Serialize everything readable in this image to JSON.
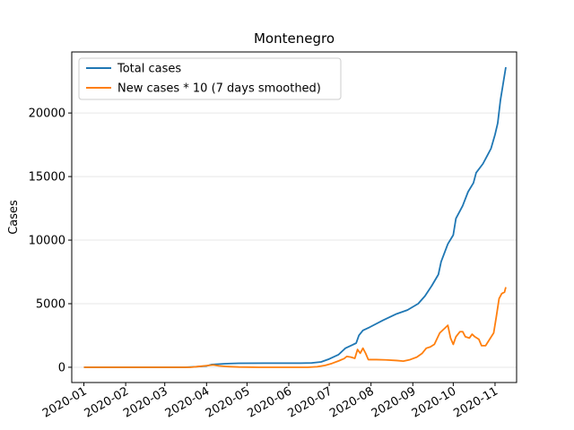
{
  "chart_data": {
    "type": "line",
    "title": "Montenegro",
    "xlabel": "",
    "ylabel": "Cases",
    "x_type": "date",
    "xlim": [
      "2019-12-23",
      "2020-11-17"
    ],
    "ylim": [
      -1200,
      24800
    ],
    "x_ticks": [
      "2020-01",
      "2020-02",
      "2020-03",
      "2020-04",
      "2020-05",
      "2020-06",
      "2020-07",
      "2020-08",
      "2020-09",
      "2020-10",
      "2020-11"
    ],
    "y_ticks": [
      0,
      5000,
      10000,
      15000,
      20000
    ],
    "grid": "y",
    "legend_position": "top-left",
    "series": [
      {
        "name": "Total cases",
        "color": "#1f77b4",
        "points": [
          [
            "2020-01-01",
            0
          ],
          [
            "2020-03-16",
            0
          ],
          [
            "2020-03-24",
            40
          ],
          [
            "2020-04-01",
            100
          ],
          [
            "2020-04-05",
            220
          ],
          [
            "2020-04-15",
            280
          ],
          [
            "2020-04-25",
            315
          ],
          [
            "2020-05-15",
            324
          ],
          [
            "2020-06-10",
            324
          ],
          [
            "2020-06-18",
            340
          ],
          [
            "2020-06-25",
            420
          ],
          [
            "2020-07-01",
            650
          ],
          [
            "2020-07-08",
            1000
          ],
          [
            "2020-07-13",
            1500
          ],
          [
            "2020-07-18",
            1750
          ],
          [
            "2020-07-21",
            1900
          ],
          [
            "2020-07-23",
            2500
          ],
          [
            "2020-07-26",
            2900
          ],
          [
            "2020-07-31",
            3150
          ],
          [
            "2020-08-10",
            3700
          ],
          [
            "2020-08-20",
            4200
          ],
          [
            "2020-08-28",
            4500
          ],
          [
            "2020-09-05",
            5000
          ],
          [
            "2020-09-10",
            5600
          ],
          [
            "2020-09-15",
            6400
          ],
          [
            "2020-09-20",
            7300
          ],
          [
            "2020-09-22",
            8300
          ],
          [
            "2020-09-27",
            9700
          ],
          [
            "2020-10-01",
            10400
          ],
          [
            "2020-10-03",
            11700
          ],
          [
            "2020-10-08",
            12700
          ],
          [
            "2020-10-12",
            13800
          ],
          [
            "2020-10-16",
            14500
          ],
          [
            "2020-10-18",
            15300
          ],
          [
            "2020-10-23",
            16000
          ],
          [
            "2020-10-27",
            16800
          ],
          [
            "2020-10-29",
            17200
          ],
          [
            "2020-11-01",
            18300
          ],
          [
            "2020-11-03",
            19200
          ],
          [
            "2020-11-05",
            21000
          ],
          [
            "2020-11-07",
            22300
          ],
          [
            "2020-11-09",
            23600
          ]
        ]
      },
      {
        "name": "New cases * 10 (7 days smoothed)",
        "color": "#ff7f0e",
        "points": [
          [
            "2020-01-01",
            0
          ],
          [
            "2020-03-20",
            0
          ],
          [
            "2020-03-28",
            80
          ],
          [
            "2020-04-03",
            150
          ],
          [
            "2020-04-06",
            180
          ],
          [
            "2020-04-10",
            110
          ],
          [
            "2020-04-16",
            60
          ],
          [
            "2020-04-25",
            20
          ],
          [
            "2020-05-10",
            0
          ],
          [
            "2020-06-15",
            0
          ],
          [
            "2020-06-22",
            40
          ],
          [
            "2020-06-28",
            150
          ],
          [
            "2020-07-03",
            300
          ],
          [
            "2020-07-08",
            500
          ],
          [
            "2020-07-12",
            680
          ],
          [
            "2020-07-14",
            850
          ],
          [
            "2020-07-17",
            800
          ],
          [
            "2020-07-20",
            700
          ],
          [
            "2020-07-22",
            1400
          ],
          [
            "2020-07-24",
            1100
          ],
          [
            "2020-07-26",
            1500
          ],
          [
            "2020-07-28",
            1100
          ],
          [
            "2020-07-30",
            600
          ],
          [
            "2020-08-05",
            600
          ],
          [
            "2020-08-12",
            580
          ],
          [
            "2020-08-20",
            530
          ],
          [
            "2020-08-25",
            480
          ],
          [
            "2020-08-30",
            600
          ],
          [
            "2020-09-04",
            800
          ],
          [
            "2020-09-08",
            1100
          ],
          [
            "2020-09-11",
            1500
          ],
          [
            "2020-09-14",
            1600
          ],
          [
            "2020-09-17",
            1800
          ],
          [
            "2020-09-21",
            2700
          ],
          [
            "2020-09-25",
            3100
          ],
          [
            "2020-09-27",
            3300
          ],
          [
            "2020-09-29",
            2300
          ],
          [
            "2020-10-01",
            1800
          ],
          [
            "2020-10-03",
            2400
          ],
          [
            "2020-10-06",
            2800
          ],
          [
            "2020-10-08",
            2800
          ],
          [
            "2020-10-10",
            2400
          ],
          [
            "2020-10-13",
            2300
          ],
          [
            "2020-10-15",
            2600
          ],
          [
            "2020-10-17",
            2400
          ],
          [
            "2020-10-20",
            2200
          ],
          [
            "2020-10-22",
            1700
          ],
          [
            "2020-10-25",
            1700
          ],
          [
            "2020-10-28",
            2200
          ],
          [
            "2020-10-31",
            2700
          ],
          [
            "2020-11-02",
            4000
          ],
          [
            "2020-11-04",
            5400
          ],
          [
            "2020-11-06",
            5800
          ],
          [
            "2020-11-08",
            5900
          ],
          [
            "2020-11-09",
            6300
          ]
        ]
      }
    ]
  }
}
